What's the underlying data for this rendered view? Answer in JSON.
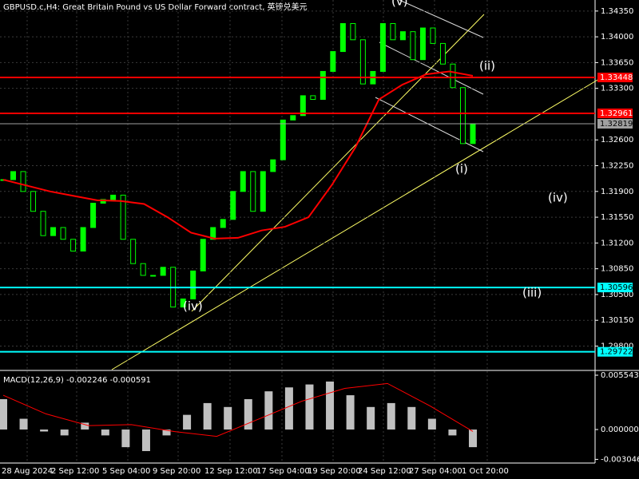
{
  "chart_data": [
    {
      "type": "candlestick",
      "title": "GBPUSD.c,H4:  Great Britain Pound vs US Dollar Forward contract, 英镑兑美元",
      "values": [
        1.3206,
        1.3217,
        1.319,
        1.3163,
        1.313,
        1.3141,
        1.3125,
        1.3109,
        1.3141,
        1.3174,
        1.3179,
        1.3185,
        1.3125,
        1.3092,
        1.3076,
        1.3076,
        1.3087,
        1.3033,
        1.3044,
        1.3082,
        1.3125,
        1.3141,
        1.3152,
        1.319,
        1.3217,
        1.3163,
        1.3217,
        1.3233,
        1.3287,
        1.3293,
        1.332,
        1.3315,
        1.3353,
        1.338,
        1.3418,
        1.3396,
        1.3336,
        1.3353,
        1.3418,
        1.3396,
        1.3407,
        1.3369,
        1.3412,
        1.3391,
        1.3363,
        1.3331,
        1.3255,
        1.3282
      ],
      "color": "#00ff00",
      "ma": [
        1.3206,
        1.3198,
        1.319,
        1.3184,
        1.3178,
        1.3177,
        1.3173,
        1.3155,
        1.3134,
        1.3126,
        1.3127,
        1.3137,
        1.3142,
        1.3155,
        1.3199,
        1.325,
        1.3315,
        1.3335,
        1.3349,
        1.3353,
        1.3347
      ],
      "ma_color": "#ff0000",
      "ylim": [
        1.2948,
        1.345
      ],
      "yticks": [
        {
          "value": 1.3435,
          "label": "1.34350"
        },
        {
          "value": 1.34,
          "label": "1.34000"
        },
        {
          "value": 1.3365,
          "label": "1.33650"
        },
        {
          "value": 1.333,
          "label": "1.33300"
        },
        {
          "value": 1.326,
          "label": "1.32600"
        },
        {
          "value": 1.3225,
          "label": "1.32250"
        },
        {
          "value": 1.319,
          "label": "1.31900"
        },
        {
          "value": 1.3155,
          "label": "1.31550"
        },
        {
          "value": 1.312,
          "label": "1.31200"
        },
        {
          "value": 1.3085,
          "label": "1.30850"
        },
        {
          "value": 1.305,
          "label": "1.30500"
        },
        {
          "value": 1.3015,
          "label": "1.30150"
        },
        {
          "value": 1.298,
          "label": "1.29800"
        }
      ],
      "levels": [
        {
          "value": 1.33448,
          "color": "#ff0000"
        },
        {
          "value": 1.32961,
          "color": "#ff0000"
        },
        {
          "value": 1.32819,
          "color": "#a0a0a0"
        },
        {
          "value": 1.30596,
          "color": "#00ffff"
        },
        {
          "value": 1.29722,
          "color": "#00ffff"
        }
      ],
      "annotations": [
        "(v)",
        "(ii)",
        "(i)",
        "(iv)",
        "(iii)",
        "(iv)"
      ],
      "xlabels": [
        "28 Aug 2024",
        "2 Sep 12:00",
        "5 Sep 04:00",
        "9 Sep 20:00",
        "12 Sep 12:00",
        "17 Sep 04:00",
        "19 Sep 20:00",
        "24 Sep 12:00",
        "27 Sep 04:00",
        "1 Oct 20:00"
      ],
      "grid": true
    },
    {
      "type": "bar",
      "title": "MACD(12,26,9) -0.002246 -0.000591",
      "values": [
        0.0031,
        0.0011,
        -0.0002,
        -0.0006,
        0.0007,
        -0.0006,
        -0.0018,
        -0.0022,
        -0.0006,
        0.0015,
        0.0027,
        0.0023,
        0.0031,
        0.0039,
        0.0043,
        0.0046,
        0.0049,
        0.0035,
        0.0023,
        0.0027,
        0.0023,
        0.0011,
        -0.0006,
        -0.0018
      ],
      "color": "#c0c0c0",
      "signal": [
        0.0035,
        0.0016,
        0.0004,
        0.0005,
        -0.0002,
        -0.0007,
        0.0011,
        0.0029,
        0.0042,
        0.0047,
        0.0024,
        -0.0002
      ],
      "signal_color": "#ff0000",
      "ylim": [
        -0.00342,
        0.00587
      ],
      "yticks": [
        0.005543,
        {
          "value": 0,
          "label": "0.000000"
        },
        -0.003046
      ]
    }
  ]
}
